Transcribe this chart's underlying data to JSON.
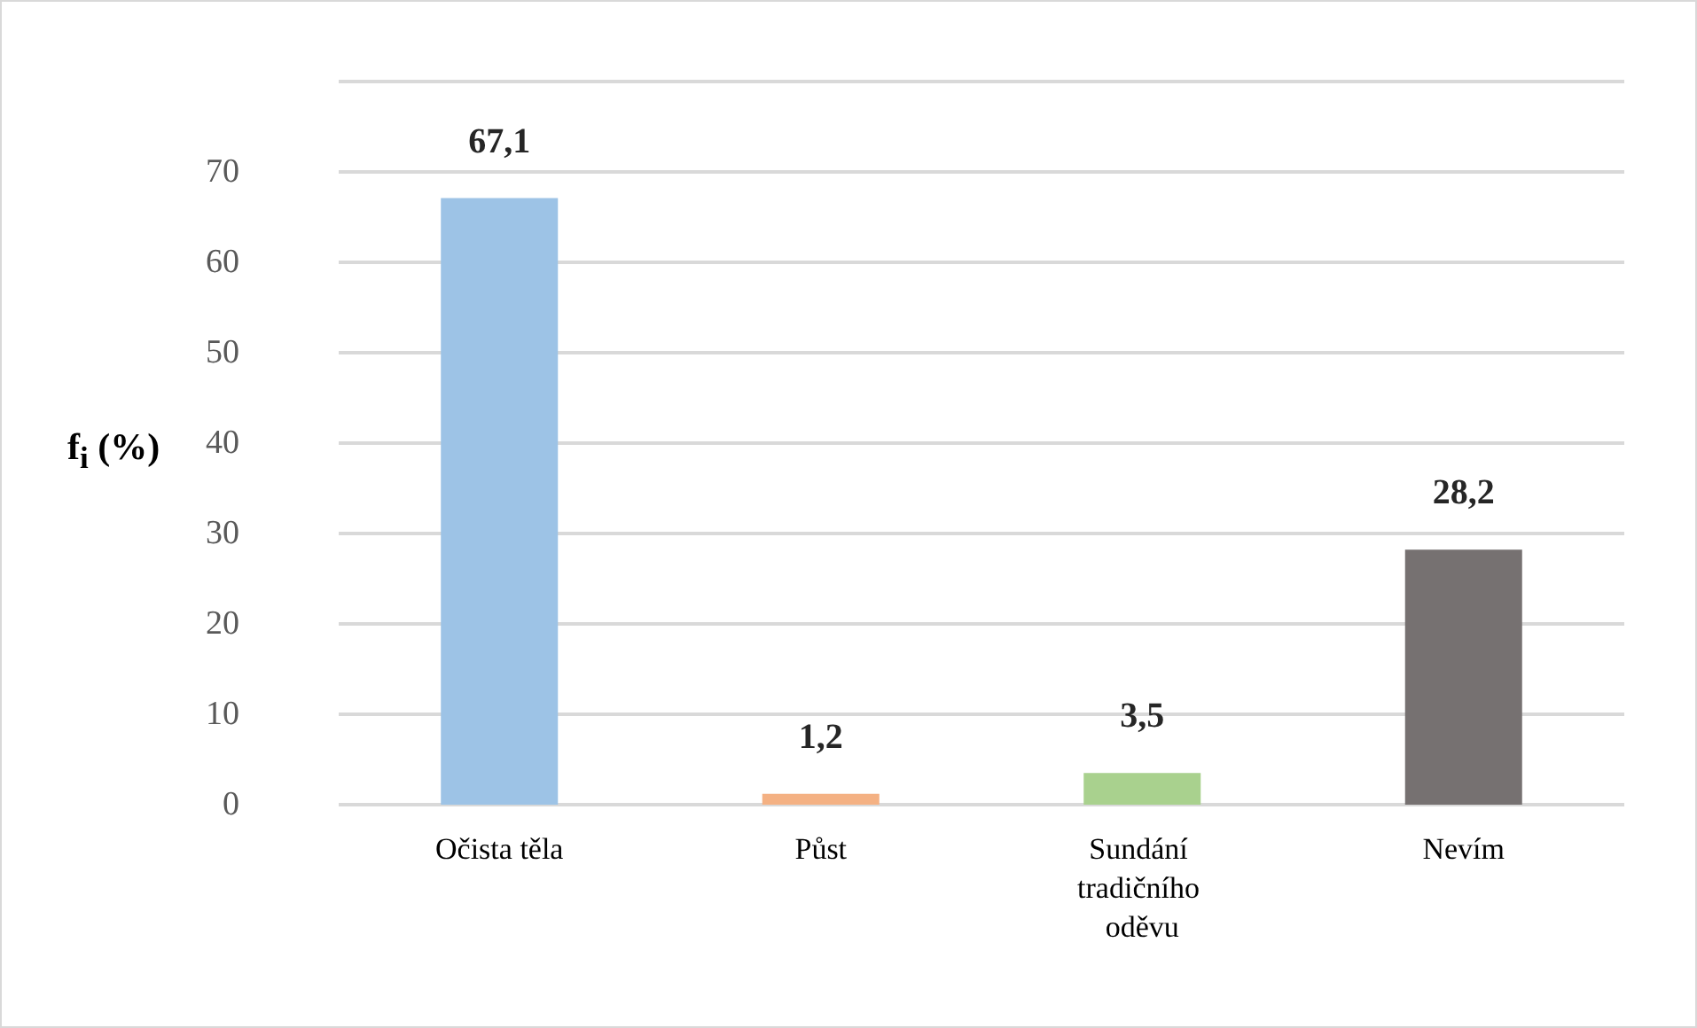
{
  "chart_data": {
    "type": "bar",
    "ylabel": "f$_{i}$ (%)",
    "categories": [
      "Očista těla",
      "Půst",
      "Sundání tradičního oděvu",
      "Nevím"
    ],
    "values": [
      67.1,
      1.2,
      3.5,
      28.2
    ],
    "colors": [
      "#9dc3e6",
      "#f4b183",
      "#a9d18e",
      "#767171"
    ],
    "value_labels": [
      "67,1",
      "1,2",
      "3,5",
      "28,2"
    ],
    "ylim": [
      0,
      80
    ],
    "yticks": [
      0,
      10,
      20,
      30,
      40,
      50,
      60,
      70,
      {
        "value": 80,
        "label": null
      }
    ],
    "grid": "y"
  }
}
